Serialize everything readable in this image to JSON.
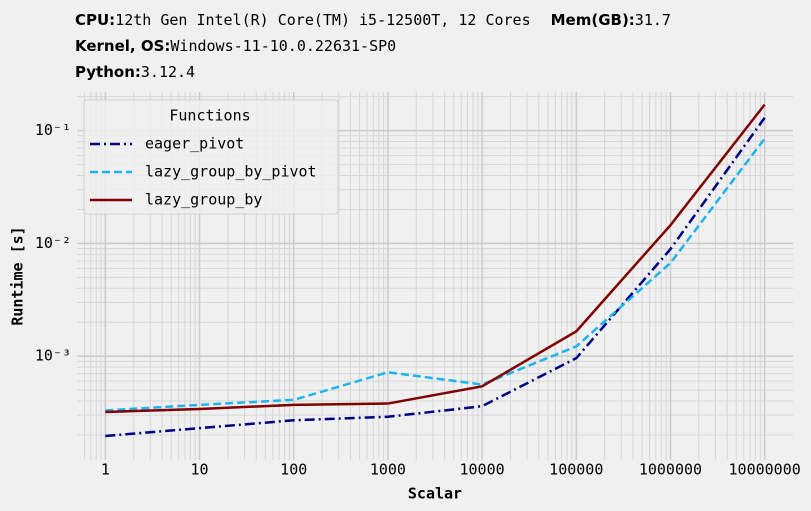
{
  "chart_data": {
    "type": "line",
    "title_lines": [
      [
        {
          "key": "CPU:",
          "value": "12th Gen Intel(R) Core(TM) i5-12500T, 12 Cores"
        },
        {
          "key": "Mem(GB):",
          "value": "31.7"
        }
      ],
      [
        {
          "key": "Kernel, OS:",
          "value": "Windows-11-10.0.22631-SP0"
        }
      ],
      [
        {
          "key": "Python:",
          "value": "3.12.4"
        }
      ]
    ],
    "x_label": "Scalar",
    "y_label": "Runtime [s]",
    "x": [
      1,
      10,
      100,
      1000,
      10000,
      100000,
      1000000,
      10000000
    ],
    "series": [
      {
        "name": "eager_pivot",
        "color": "#000080",
        "linestyle": "dashdot",
        "values": [
          0.000196,
          0.00023,
          0.00027,
          0.00029,
          0.00036,
          0.00096,
          0.0089,
          0.13
        ]
      },
      {
        "name": "lazy_group_by_pivot",
        "color": "#1cb4ec",
        "linestyle": "dashed",
        "values": [
          0.00033,
          0.00037,
          0.00041,
          0.00072,
          0.00056,
          0.00122,
          0.0067,
          0.085
        ]
      },
      {
        "name": "lazy_group_by",
        "color": "#800000",
        "linestyle": "solid",
        "values": [
          0.00032,
          0.00034,
          0.00037,
          0.00038,
          0.00054,
          0.00166,
          0.0145,
          0.17
        ]
      }
    ],
    "xscale": "log",
    "yscale": "log",
    "xlim": [
      0.5,
      20000000
    ],
    "ylim": [
      0.00012,
      0.22
    ],
    "xticks": [
      1,
      10,
      100,
      1000,
      10000,
      100000,
      1000000,
      10000000
    ],
    "yticks": [
      {
        "value": 0.001,
        "label": "10⁻³"
      },
      {
        "value": 0.01,
        "label": "10⁻²"
      },
      {
        "value": 0.1,
        "label": "10⁻¹"
      }
    ],
    "grid": true,
    "minor_grid": true,
    "legend_title": "Functions",
    "legend_loc": "upper left"
  }
}
